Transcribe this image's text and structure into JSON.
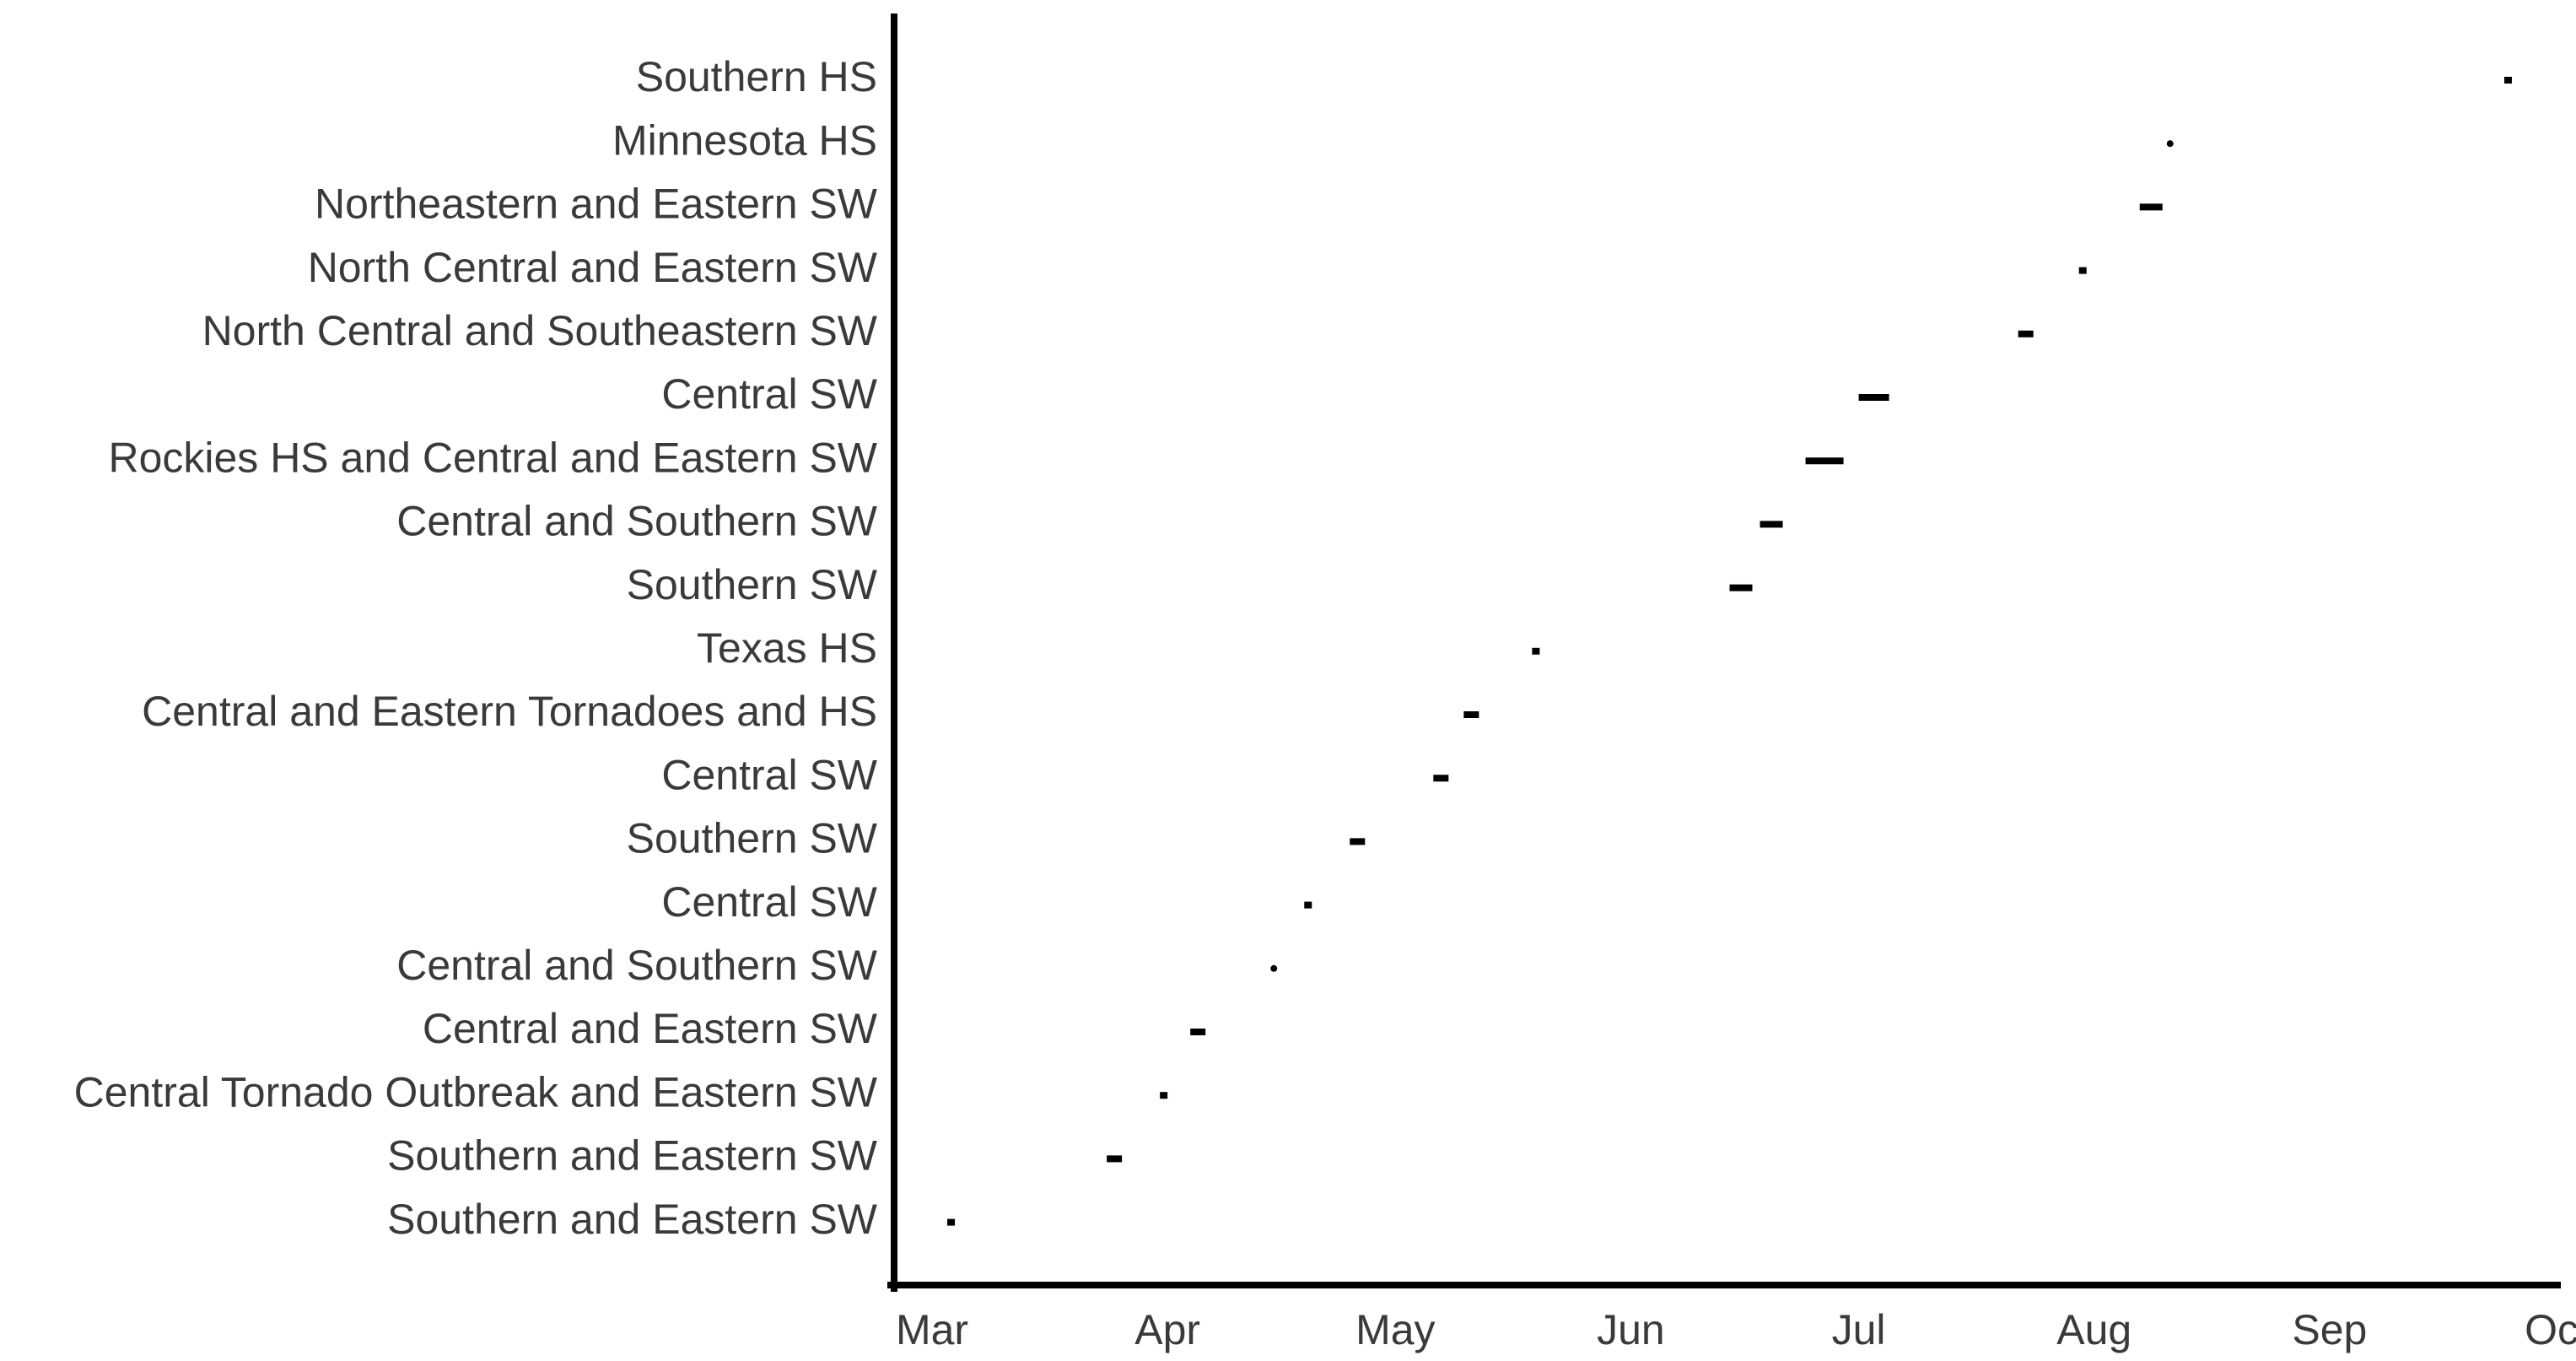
{
  "chart_data": {
    "type": "range",
    "title": "",
    "xlabel": "",
    "ylabel": "",
    "grid": false,
    "legend": "none",
    "xlim": [
      "2011-02-24",
      "2011-10-01"
    ],
    "x_tick_labels": [
      {
        "label": "Mar",
        "date": "2011-03-01"
      },
      {
        "label": "Apr",
        "date": "2011-04-01"
      },
      {
        "label": "May",
        "date": "2011-05-01"
      },
      {
        "label": "Jun",
        "date": "2011-06-01"
      },
      {
        "label": "Jul",
        "date": "2011-07-01"
      },
      {
        "label": "Aug",
        "date": "2011-08-01"
      },
      {
        "label": "Sep",
        "date": "2011-09-01"
      },
      {
        "label": "Oct",
        "date": "2011-10-01"
      }
    ],
    "events": [
      {
        "label": "Southern HS",
        "start": "2011-09-24",
        "end": "2011-09-25"
      },
      {
        "label": "Minnesota HS",
        "start": "2011-08-11",
        "end": "2011-08-11"
      },
      {
        "label": "Northeastern and Eastern SW",
        "start": "2011-08-07",
        "end": "2011-08-10"
      },
      {
        "label": "North Central and Eastern SW",
        "start": "2011-07-30",
        "end": "2011-07-31"
      },
      {
        "label": "North Central and Southeastern SW",
        "start": "2011-07-22",
        "end": "2011-07-24"
      },
      {
        "label": "Central SW",
        "start": "2011-07-01",
        "end": "2011-07-05"
      },
      {
        "label": "Rockies HS and Central and Eastern SW",
        "start": "2011-06-24",
        "end": "2011-06-29"
      },
      {
        "label": "Central and Southern SW",
        "start": "2011-06-18",
        "end": "2011-06-21"
      },
      {
        "label": "Southern SW",
        "start": "2011-06-14",
        "end": "2011-06-17"
      },
      {
        "label": "Texas HS",
        "start": "2011-05-19",
        "end": "2011-05-20"
      },
      {
        "label": "Central and Eastern Tornadoes and HS",
        "start": "2011-05-10",
        "end": "2011-05-12"
      },
      {
        "label": "Central SW",
        "start": "2011-05-06",
        "end": "2011-05-08"
      },
      {
        "label": "Southern SW",
        "start": "2011-04-25",
        "end": "2011-04-27"
      },
      {
        "label": "Central SW",
        "start": "2011-04-19",
        "end": "2011-04-20"
      },
      {
        "label": "Central and Southern SW",
        "start": "2011-04-15",
        "end": "2011-04-15"
      },
      {
        "label": "Central and Eastern SW",
        "start": "2011-04-04",
        "end": "2011-04-06"
      },
      {
        "label": "Central Tornado Outbreak and Eastern SW",
        "start": "2011-03-31",
        "end": "2011-04-01"
      },
      {
        "label": "Southern and Eastern SW",
        "start": "2011-03-24",
        "end": "2011-03-26"
      },
      {
        "label": "Southern and Eastern SW",
        "start": "2011-03-03",
        "end": "2011-03-04"
      }
    ]
  }
}
